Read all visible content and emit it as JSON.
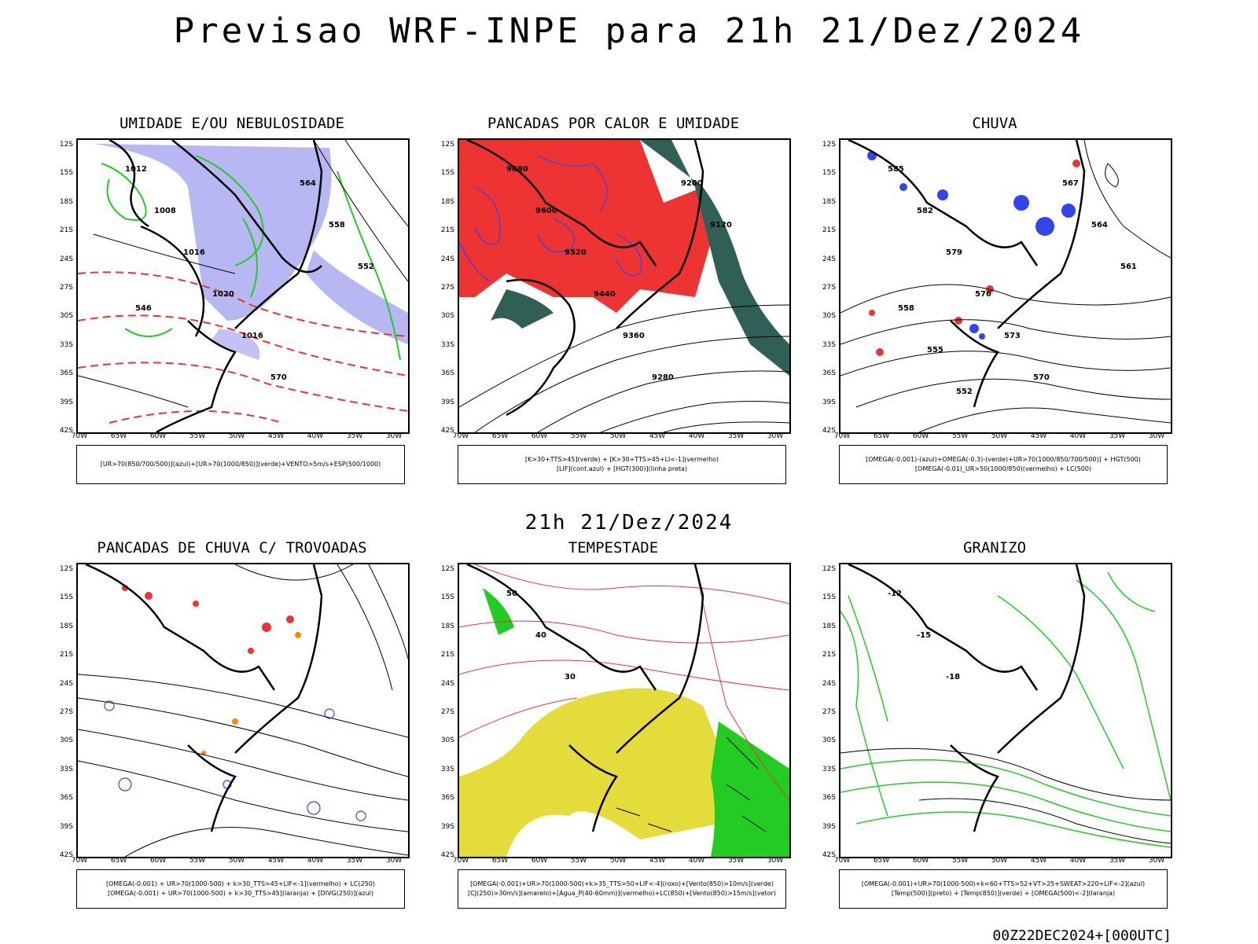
{
  "title": "Previsao WRF-INPE  para 21h 21/Dez/2024",
  "mid_time": "21h 21/Dez/2024",
  "footer": "00Z22DEC2024+[000UTC]",
  "lat_ticks": [
    "12S",
    "15S",
    "18S",
    "21S",
    "24S",
    "27S",
    "30S",
    "33S",
    "36S",
    "39S",
    "42S"
  ],
  "lon_ticks": [
    "70W",
    "65W",
    "60W",
    "55W",
    "50W",
    "45W",
    "40W",
    "35W",
    "30W"
  ],
  "panels": [
    {
      "title": "UMIDADE E/OU NEBULOSIDADE",
      "legend": [
        "[UR>70(850/700/500)](azul)+[UR>70(1000/850)](verde)+VENTO>5m/s+ESP(500/1000)"
      ],
      "labels": [
        "1012",
        "1008",
        "1016",
        "1020",
        "1016",
        "570",
        "564",
        "558",
        "552",
        "546"
      ]
    },
    {
      "title": "PANCADAS POR CALOR E UMIDADE",
      "legend": [
        "[K>30+TTS>45](verde) + [K>30+TTS>45+LI<-1](vermelho)",
        "[LIF](cont.azul) + [HGT(300)](linha preta)"
      ],
      "labels": [
        "9680",
        "9600",
        "9520",
        "9440",
        "9360",
        "9280",
        "9200",
        "9120"
      ]
    },
    {
      "title": "CHUVA",
      "legend": [
        "[OMEGA(-0.001)-(azul)+OMEGA(-0.3)-(verde)+UR>70(1000/850/700/500)] + HGT(500)",
        "[OMEGA(-0.01)_UR>50(1000/850)(vermelho) + LC(500)"
      ],
      "labels": [
        "585",
        "582",
        "579",
        "576",
        "573",
        "570",
        "567",
        "564",
        "561",
        "558",
        "555",
        "552"
      ]
    },
    {
      "title": "PANCADAS DE CHUVA C/ TROVOADAS",
      "legend": [
        "[OMEGA(-0.001) + UR>70(1000-500) + k>30_TTS>45+LIF<-1](vermelho) + LC(250)",
        "[OMEGA(-0.001) + UR>70(1000-500) + k>30_TTS>45](laranja) + [DIVG(250)](azul)"
      ],
      "labels": []
    },
    {
      "title": "TEMPESTADE",
      "legend": [
        "[OMEGA(-0.001)+UR>70(1000-500)+k>35_TTS>50+LIF<-4](roxo)+[Vento(850)>10m/s](verde)",
        "[CJ(250)>30m/s](amarelo)+[Agua_P(40-60mm)](vermelho)+LC(850)+[Vento(850)>15m/s](vetor)"
      ],
      "labels": [
        "50",
        "40",
        "30"
      ]
    },
    {
      "title": "GRANIZO",
      "legend": [
        "[OMEGA(-0.001)+UR>70(1000-500)+k<60+TTS>52+VT>25+SWEAT>220+LIF<-2](azul)",
        "[Temp(500)](preto) + [Temp(850)](verde) + [OMEGA(500)<-2](laranja)"
      ],
      "labels": [
        "-12",
        "-15",
        "-18"
      ]
    }
  ],
  "colors": {
    "blue": "#3344ee",
    "green": "#22cc22",
    "red": "#ee3333",
    "purple": "#9999ee",
    "darkgreen": "#2f5f55",
    "yellow": "#e3dc3a",
    "orange": "#ff8800"
  }
}
